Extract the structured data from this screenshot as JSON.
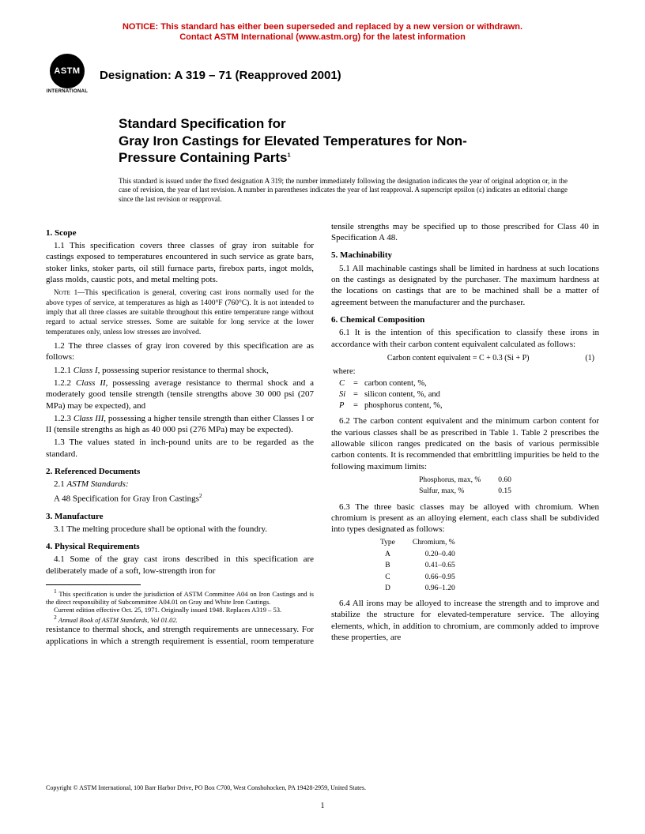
{
  "notice": {
    "line1": "NOTICE: This standard has either been superseded and replaced by a new version or withdrawn.",
    "line2": "Contact ASTM International (www.astm.org) for the latest information"
  },
  "logo": {
    "text": "ASTM",
    "sub": "INTERNATIONAL"
  },
  "designation": "Designation: A 319 – 71 (Reapproved 2001)",
  "title": {
    "line1": "Standard Specification for",
    "line2": "Gray Iron Castings for Elevated Temperatures for Non-",
    "line3": "Pressure Containing Parts"
  },
  "issuance": "This standard is issued under the fixed designation A 319; the number immediately following the designation indicates the year of original adoption or, in the case of revision, the year of last revision. A number in parentheses indicates the year of last reapproval. A superscript epsilon (ε) indicates an editorial change since the last revision or reapproval.",
  "sections": {
    "s1_head": "1. Scope",
    "s1_1": "1.1 This specification covers three classes of gray iron suitable for castings exposed to temperatures encountered in such service as grate bars, stoker links, stoker parts, oil still furnace parts, firebox parts, ingot molds, glass molds, caustic pots, and metal melting pots.",
    "s1_note": "NOTE 1—This specification is general, covering cast irons normally used for the above types of service, at temperatures as high as 1400°F (760°C). It is not intended to imply that all three classes are suitable throughout this entire temperature range without regard to actual service stresses. Some are suitable for long service at the lower temperatures only, unless low stresses are involved.",
    "s1_2": "1.2 The three classes of gray iron covered by this specification are as follows:",
    "s1_2_1": "1.2.1 Class I, possessing superior resistance to thermal shock,",
    "s1_2_2": "1.2.2 Class II, possessing average resistance to thermal shock and a moderately good tensile strength (tensile strengths above 30 000 psi (207 MPa) may be expected), and",
    "s1_2_3": "1.2.3 Class III, possessing a higher tensile strength than either Classes I or II (tensile strengths as high as 40 000 psi (276 MPa) may be expected).",
    "s1_3": "1.3 The values stated in inch-pound units are to be regarded as the standard.",
    "s2_head": "2. Referenced Documents",
    "s2_1": "2.1 ASTM Standards:",
    "s2_a48": "A 48 Specification for Gray Iron Castings",
    "s3_head": "3. Manufacture",
    "s3_1": "3.1 The melting procedure shall be optional with the foundry.",
    "s4_head": "4. Physical Requirements",
    "s4_1": "4.1 Some of the gray cast irons described in this specification are deliberately made of a soft, low-strength iron for",
    "s4_1b": "resistance to thermal shock, and strength requirements are unnecessary. For applications in which a strength requirement is essential, room temperature tensile strengths may be specified up to those prescribed for Class 40 in Specification A 48.",
    "s5_head": "5. Machinability",
    "s5_1": "5.1 All machinable castings shall be limited in hardness at such locations on the castings as designated by the purchaser. The maximum hardness at the locations on castings that are to be machined shall be a matter of agreement between the manufacturer and the purchaser.",
    "s6_head": "6. Chemical Composition",
    "s6_1": "6.1 It is the intention of this specification to classify these irons in accordance with their carbon content equivalent calculated as follows:",
    "formula": "Carbon content  equivalent = C + 0.3 (Si + P)",
    "eq_num": "(1)",
    "where": "where:",
    "where_c": "carbon content, %,",
    "where_si": "silicon content, %, and",
    "where_p": "phosphorus content, %,",
    "s6_2": "6.2 The carbon content equivalent and the minimum carbon content for the various classes shall be as prescribed in Table 1. Table 2 prescribes the allowable silicon ranges predicated on the basis of various permissible carbon contents. It is recommended that embrittling impurities be held to the following maximum limits:",
    "limits": [
      {
        "label": "Phosphorus, max, %",
        "value": "0.60"
      },
      {
        "label": "Sulfur, max, %",
        "value": "0.15"
      }
    ],
    "s6_3": "6.3 The three basic classes may be alloyed with chromium. When chromium is present as an alloying element, each class shall be subdivided into types designated as follows:",
    "types_head": {
      "col1": "Type",
      "col2": "Chromium, %"
    },
    "types": [
      {
        "t": "A",
        "r": "0.20–0.40"
      },
      {
        "t": "B",
        "r": "0.41–0.65"
      },
      {
        "t": "C",
        "r": "0.66–0.95"
      },
      {
        "t": "D",
        "r": "0.96–1.20"
      }
    ],
    "s6_4": "6.4 All irons may be alloyed to increase the strength and to improve and stabilize the structure for elevated-temperature service. The alloying elements, which, in addition to chromium, are commonly added to improve these properties, are"
  },
  "footnotes": {
    "f1": "This specification is under the jurisdiction of ASTM Committee A04 on Iron Castings and is the direct responsibility of Subcommittee A04.01 on Gray and White Iron Castings.",
    "f1b": "Current edition effective Oct. 25, 1971. Originally issued 1948. Replaces A319 – 53.",
    "f2": "Annual Book of ASTM Standards, Vol 01.02."
  },
  "copyright": "Copyright © ASTM International, 100 Barr Harbor Drive, PO Box C700, West Conshohocken, PA 19428-2959, United States.",
  "pagenum": "1"
}
